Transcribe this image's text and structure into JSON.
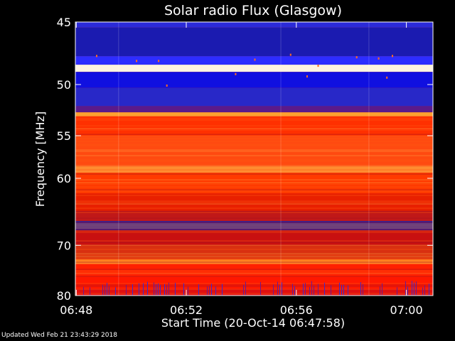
{
  "chart_data": {
    "type": "heatmap",
    "title": "Solar radio Flux (Glasgow)",
    "xlabel": "Start Time (20-Oct-14 06:47:58)",
    "ylabel": "Frequency [MHz]",
    "xlim": [
      "06:47:58",
      "06:61:00"
    ],
    "x_ticks": [
      "06:48",
      "06:52",
      "06:56",
      "07:00"
    ],
    "x_tick_minutes": [
      0.033,
      4.033,
      8.033,
      12.033
    ],
    "x_max_minutes": 13.0,
    "y_ticks": [
      45,
      50,
      55,
      60,
      70,
      80
    ],
    "ylim": [
      45,
      80
    ],
    "y_scale": "reciprocal",
    "colormap": [
      "#1a1a8c",
      "#0000ff",
      "#c00000",
      "#ff2a00",
      "#ff7a00",
      "#ffd080",
      "#ffffff"
    ],
    "bands": [
      {
        "f0": 45.0,
        "f1": 45.4,
        "color": "#2b2bd8"
      },
      {
        "f0": 45.4,
        "f1": 47.6,
        "color": "#1b1bb0"
      },
      {
        "f0": 47.6,
        "f1": 48.3,
        "color": "#2d2dff"
      },
      {
        "f0": 48.3,
        "f1": 48.9,
        "color": "#fff4e0"
      },
      {
        "f0": 48.9,
        "f1": 50.3,
        "color": "#1010e0"
      },
      {
        "f0": 50.3,
        "f1": 52.0,
        "color": "#2828c8"
      },
      {
        "f0": 52.0,
        "f1": 52.6,
        "color": "#5b1a8a"
      },
      {
        "f0": 52.6,
        "f1": 53.0,
        "color": "#ffa030"
      },
      {
        "f0": 53.0,
        "f1": 55.0,
        "color": "#ff3000"
      },
      {
        "f0": 55.0,
        "f1": 58.5,
        "color": "#ff4a10"
      },
      {
        "f0": 58.5,
        "f1": 59.3,
        "color": "#ff8c30"
      },
      {
        "f0": 59.3,
        "f1": 62.0,
        "color": "#ff3a00"
      },
      {
        "f0": 62.0,
        "f1": 64.5,
        "color": "#e82000"
      },
      {
        "f0": 64.5,
        "f1": 66.0,
        "color": "#c01818"
      },
      {
        "f0": 66.0,
        "f1": 67.5,
        "color": "#3a2090"
      },
      {
        "f0": 67.5,
        "f1": 70.0,
        "color": "#c81010"
      },
      {
        "f0": 70.0,
        "f1": 72.5,
        "color": "#d83010"
      },
      {
        "f0": 72.5,
        "f1": 73.4,
        "color": "#ff8020"
      },
      {
        "f0": 73.4,
        "f1": 76.0,
        "color": "#ff2000"
      },
      {
        "f0": 76.0,
        "f1": 78.5,
        "color": "#ff1800"
      },
      {
        "f0": 78.5,
        "f1": 80.0,
        "color": "#e01010"
      }
    ]
  },
  "footer": {
    "updated": "Updated Wed Feb 21 23:43:29 2018"
  }
}
